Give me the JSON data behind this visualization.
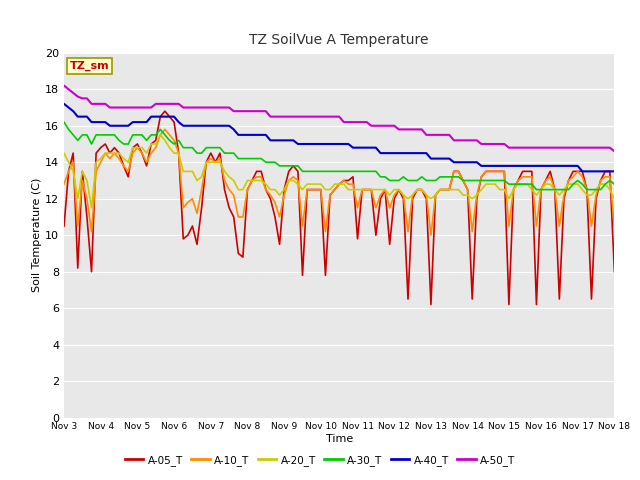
{
  "title": "TZ SoilVue A Temperature",
  "xlabel": "Time",
  "ylabel": "Soil Temperature (C)",
  "ylim": [
    0,
    20
  ],
  "yticks": [
    0,
    2,
    4,
    6,
    8,
    10,
    12,
    14,
    16,
    18,
    20
  ],
  "xtick_labels": [
    "Nov 3",
    "Nov 4",
    "Nov 5",
    "Nov 6",
    "Nov 7",
    "Nov 8",
    "Nov 9",
    "Nov 10",
    "Nov 11",
    "Nov 12",
    "Nov 13",
    "Nov 14",
    "Nov 15",
    "Nov 16",
    "Nov 17",
    "Nov 18"
  ],
  "bg_color": "#e8e8e8",
  "annotation_text": "TZ_sm",
  "annotation_bg": "#ffffcc",
  "annotation_border": "#999900",
  "series": [
    {
      "label": "A-05_T",
      "color": "#cc0000",
      "lw": 1.2,
      "y": [
        10.5,
        13.5,
        14.5,
        8.2,
        13.5,
        11.0,
        8.0,
        14.5,
        14.8,
        15.0,
        14.5,
        14.8,
        14.5,
        13.8,
        13.2,
        14.8,
        15.0,
        14.5,
        13.8,
        15.0,
        15.2,
        16.5,
        16.8,
        16.5,
        16.2,
        14.5,
        9.8,
        10.0,
        10.5,
        9.5,
        11.5,
        14.0,
        14.5,
        14.0,
        14.5,
        12.5,
        11.5,
        11.0,
        9.0,
        8.8,
        12.5,
        13.0,
        13.5,
        13.5,
        12.5,
        12.0,
        11.0,
        9.5,
        12.5,
        13.5,
        13.8,
        13.5,
        7.8,
        12.5,
        12.5,
        12.5,
        12.5,
        7.8,
        12.2,
        12.5,
        12.8,
        13.0,
        13.0,
        13.2,
        9.8,
        12.5,
        12.5,
        12.5,
        10.0,
        12.0,
        12.5,
        9.5,
        12.0,
        12.5,
        12.0,
        6.5,
        12.0,
        12.5,
        12.5,
        12.0,
        6.2,
        12.2,
        12.5,
        12.5,
        12.5,
        13.5,
        13.5,
        13.0,
        12.5,
        6.5,
        12.0,
        13.2,
        13.5,
        13.5,
        13.5,
        13.5,
        13.5,
        6.2,
        12.5,
        13.0,
        13.5,
        13.5,
        13.5,
        6.2,
        12.5,
        13.0,
        13.5,
        12.5,
        6.5,
        12.0,
        13.0,
        13.5,
        13.5,
        13.5,
        12.5,
        6.5,
        12.0,
        13.0,
        13.5,
        13.5,
        8.0
      ]
    },
    {
      "label": "A-10_T",
      "color": "#ff8c00",
      "lw": 1.2,
      "y": [
        12.8,
        13.5,
        14.0,
        10.5,
        13.0,
        12.0,
        10.2,
        13.5,
        14.0,
        14.5,
        14.2,
        14.5,
        14.2,
        13.8,
        13.5,
        14.5,
        14.8,
        14.5,
        14.0,
        14.5,
        14.8,
        15.5,
        15.8,
        15.5,
        15.2,
        14.5,
        11.5,
        11.8,
        12.0,
        11.2,
        12.5,
        14.0,
        14.2,
        14.0,
        14.2,
        13.0,
        12.5,
        12.2,
        11.0,
        11.0,
        12.5,
        13.0,
        13.2,
        13.2,
        12.5,
        12.2,
        11.8,
        11.0,
        12.2,
        13.0,
        13.2,
        13.0,
        10.5,
        12.5,
        12.5,
        12.5,
        12.5,
        10.2,
        12.2,
        12.5,
        12.8,
        13.0,
        12.8,
        12.8,
        11.5,
        12.5,
        12.5,
        12.5,
        11.5,
        12.2,
        12.5,
        11.5,
        12.2,
        12.5,
        12.2,
        10.2,
        12.2,
        12.5,
        12.5,
        12.2,
        10.0,
        12.2,
        12.5,
        12.5,
        12.5,
        13.5,
        13.5,
        13.0,
        12.5,
        10.2,
        12.2,
        13.2,
        13.5,
        13.5,
        13.5,
        13.5,
        13.5,
        10.5,
        12.5,
        13.0,
        13.2,
        13.2,
        13.2,
        10.5,
        12.5,
        13.0,
        13.2,
        12.5,
        10.5,
        12.2,
        13.0,
        13.2,
        13.5,
        13.2,
        12.5,
        10.5,
        12.2,
        13.0,
        13.2,
        13.2,
        10.5
      ]
    },
    {
      "label": "A-20_T",
      "color": "#cccc00",
      "lw": 1.2,
      "y": [
        14.5,
        14.0,
        13.5,
        12.0,
        13.5,
        13.0,
        11.5,
        14.0,
        14.2,
        14.5,
        14.5,
        14.5,
        14.5,
        14.2,
        14.0,
        14.8,
        14.8,
        14.8,
        14.5,
        15.0,
        15.0,
        15.5,
        15.2,
        14.8,
        14.5,
        14.5,
        13.5,
        13.5,
        13.5,
        13.0,
        13.2,
        14.0,
        14.0,
        14.0,
        14.0,
        13.5,
        13.2,
        13.0,
        12.5,
        12.5,
        13.0,
        13.0,
        13.0,
        13.0,
        12.8,
        12.5,
        12.5,
        12.2,
        12.5,
        13.0,
        13.0,
        12.8,
        12.5,
        12.8,
        12.8,
        12.8,
        12.8,
        12.5,
        12.5,
        12.8,
        12.8,
        12.8,
        12.5,
        12.5,
        12.5,
        12.5,
        12.5,
        12.5,
        12.5,
        12.5,
        12.5,
        12.2,
        12.5,
        12.5,
        12.2,
        12.0,
        12.2,
        12.5,
        12.5,
        12.2,
        12.0,
        12.2,
        12.5,
        12.5,
        12.5,
        12.5,
        12.5,
        12.2,
        12.2,
        12.0,
        12.2,
        12.5,
        12.8,
        12.8,
        12.8,
        12.5,
        12.5,
        12.0,
        12.5,
        12.8,
        12.8,
        12.8,
        12.5,
        12.2,
        12.5,
        12.8,
        12.8,
        12.5,
        12.2,
        12.5,
        12.8,
        12.8,
        12.8,
        12.5,
        12.2,
        12.2,
        12.5,
        12.8,
        12.8,
        12.5,
        12.0
      ]
    },
    {
      "label": "A-30_T",
      "color": "#00cc00",
      "lw": 1.2,
      "y": [
        16.2,
        15.8,
        15.5,
        15.2,
        15.5,
        15.5,
        15.0,
        15.5,
        15.5,
        15.5,
        15.5,
        15.5,
        15.2,
        15.0,
        15.0,
        15.5,
        15.5,
        15.5,
        15.2,
        15.5,
        15.5,
        15.8,
        15.5,
        15.2,
        15.0,
        15.2,
        14.8,
        14.8,
        14.8,
        14.5,
        14.5,
        14.8,
        14.8,
        14.8,
        14.8,
        14.5,
        14.5,
        14.5,
        14.2,
        14.2,
        14.2,
        14.2,
        14.2,
        14.2,
        14.0,
        14.0,
        14.0,
        13.8,
        13.8,
        13.8,
        13.8,
        13.8,
        13.5,
        13.5,
        13.5,
        13.5,
        13.5,
        13.5,
        13.5,
        13.5,
        13.5,
        13.5,
        13.5,
        13.5,
        13.5,
        13.5,
        13.5,
        13.5,
        13.5,
        13.2,
        13.2,
        13.0,
        13.0,
        13.0,
        13.2,
        13.0,
        13.0,
        13.0,
        13.2,
        13.0,
        13.0,
        13.0,
        13.2,
        13.2,
        13.2,
        13.2,
        13.2,
        13.0,
        13.0,
        13.0,
        13.0,
        13.0,
        13.0,
        13.0,
        13.0,
        13.0,
        13.0,
        12.8,
        12.8,
        12.8,
        12.8,
        12.8,
        12.8,
        12.5,
        12.5,
        12.5,
        12.5,
        12.5,
        12.5,
        12.5,
        12.5,
        12.8,
        13.0,
        12.8,
        12.5,
        12.5,
        12.5,
        12.5,
        12.8,
        13.0,
        12.8
      ]
    },
    {
      "label": "A-40_T",
      "color": "#0000cc",
      "lw": 1.5,
      "y": [
        17.2,
        17.0,
        16.8,
        16.5,
        16.5,
        16.5,
        16.2,
        16.2,
        16.2,
        16.2,
        16.0,
        16.0,
        16.0,
        16.0,
        16.0,
        16.2,
        16.2,
        16.2,
        16.2,
        16.5,
        16.5,
        16.5,
        16.5,
        16.5,
        16.5,
        16.2,
        16.0,
        16.0,
        16.0,
        16.0,
        16.0,
        16.0,
        16.0,
        16.0,
        16.0,
        16.0,
        16.0,
        15.8,
        15.5,
        15.5,
        15.5,
        15.5,
        15.5,
        15.5,
        15.5,
        15.2,
        15.2,
        15.2,
        15.2,
        15.2,
        15.2,
        15.0,
        15.0,
        15.0,
        15.0,
        15.0,
        15.0,
        15.0,
        15.0,
        15.0,
        15.0,
        15.0,
        15.0,
        14.8,
        14.8,
        14.8,
        14.8,
        14.8,
        14.8,
        14.5,
        14.5,
        14.5,
        14.5,
        14.5,
        14.5,
        14.5,
        14.5,
        14.5,
        14.5,
        14.5,
        14.2,
        14.2,
        14.2,
        14.2,
        14.2,
        14.0,
        14.0,
        14.0,
        14.0,
        14.0,
        14.0,
        13.8,
        13.8,
        13.8,
        13.8,
        13.8,
        13.8,
        13.8,
        13.8,
        13.8,
        13.8,
        13.8,
        13.8,
        13.8,
        13.8,
        13.8,
        13.8,
        13.8,
        13.8,
        13.8,
        13.8,
        13.8,
        13.8,
        13.5,
        13.5,
        13.5,
        13.5,
        13.5,
        13.5,
        13.5,
        13.5
      ]
    },
    {
      "label": "A-50_T",
      "color": "#cc00cc",
      "lw": 1.5,
      "y": [
        18.2,
        18.0,
        17.8,
        17.6,
        17.5,
        17.5,
        17.2,
        17.2,
        17.2,
        17.2,
        17.0,
        17.0,
        17.0,
        17.0,
        17.0,
        17.0,
        17.0,
        17.0,
        17.0,
        17.0,
        17.2,
        17.2,
        17.2,
        17.2,
        17.2,
        17.2,
        17.0,
        17.0,
        17.0,
        17.0,
        17.0,
        17.0,
        17.0,
        17.0,
        17.0,
        17.0,
        17.0,
        16.8,
        16.8,
        16.8,
        16.8,
        16.8,
        16.8,
        16.8,
        16.8,
        16.5,
        16.5,
        16.5,
        16.5,
        16.5,
        16.5,
        16.5,
        16.5,
        16.5,
        16.5,
        16.5,
        16.5,
        16.5,
        16.5,
        16.5,
        16.5,
        16.2,
        16.2,
        16.2,
        16.2,
        16.2,
        16.2,
        16.0,
        16.0,
        16.0,
        16.0,
        16.0,
        16.0,
        15.8,
        15.8,
        15.8,
        15.8,
        15.8,
        15.8,
        15.5,
        15.5,
        15.5,
        15.5,
        15.5,
        15.5,
        15.2,
        15.2,
        15.2,
        15.2,
        15.2,
        15.2,
        15.0,
        15.0,
        15.0,
        15.0,
        15.0,
        15.0,
        14.8,
        14.8,
        14.8,
        14.8,
        14.8,
        14.8,
        14.8,
        14.8,
        14.8,
        14.8,
        14.8,
        14.8,
        14.8,
        14.8,
        14.8,
        14.8,
        14.8,
        14.8,
        14.8,
        14.8,
        14.8,
        14.8,
        14.8,
        14.6
      ]
    }
  ],
  "n_points": 121
}
